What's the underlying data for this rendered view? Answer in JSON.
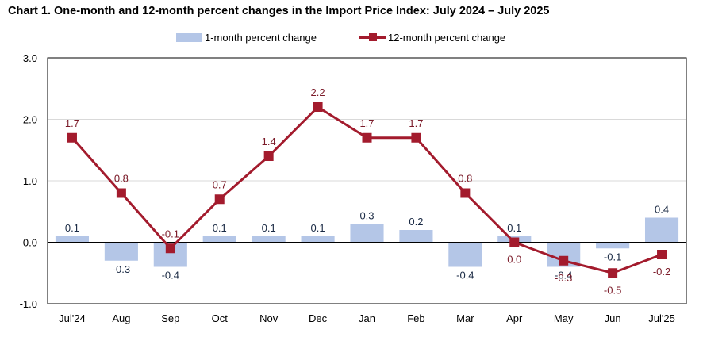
{
  "title": "Chart 1. One-month and 12-month percent changes in the Import Price Index: July 2024 – July 2025",
  "legend": {
    "bar_label": "1-month percent change",
    "line_label": "12-month percent change"
  },
  "colors": {
    "bar": "#b4c6e7",
    "line": "#a31b2d",
    "line_label": "#7b1a28",
    "grid": "#d9d9d9",
    "axis": "#000000"
  },
  "chart_data": {
    "type": "bar",
    "title": "Chart 1. One-month and 12-month percent changes in the Import Price Index: July 2024 – July 2025",
    "xlabel": "",
    "ylabel": "",
    "ylim": [
      -1.0,
      3.0
    ],
    "yticks": [
      "3.0",
      "2.0",
      "1.0",
      "0.0",
      "-1.0"
    ],
    "ytick_values": [
      3.0,
      2.0,
      1.0,
      0.0,
      -1.0
    ],
    "categories": [
      "Jul'24",
      "Aug",
      "Sep",
      "Oct",
      "Nov",
      "Dec",
      "Jan",
      "Feb",
      "Mar",
      "Apr",
      "May",
      "Jun",
      "Jul'25"
    ],
    "series": [
      {
        "name": "1-month percent change",
        "type": "bar",
        "values": [
          0.1,
          -0.3,
          -0.4,
          0.1,
          0.1,
          0.1,
          0.3,
          0.2,
          -0.4,
          0.1,
          -0.4,
          -0.1,
          0.4
        ],
        "labels": [
          "0.1",
          "-0.3",
          "-0.4",
          "0.1",
          "0.1",
          "0.1",
          "0.3",
          "0.2",
          "-0.4",
          "0.1",
          "-0.4",
          "-0.1",
          "0.4"
        ]
      },
      {
        "name": "12-month percent change",
        "type": "line",
        "values": [
          1.7,
          0.8,
          -0.1,
          0.7,
          1.4,
          2.2,
          1.7,
          1.7,
          0.8,
          0.0,
          -0.3,
          -0.5,
          -0.2
        ],
        "labels": [
          "1.7",
          "0.8",
          "-0.1",
          "0.7",
          "1.4",
          "2.2",
          "1.7",
          "1.7",
          "0.8",
          "0.0",
          "-0.3",
          "-0.5",
          "-0.2"
        ]
      }
    ],
    "grid": true,
    "legend_position": "top-center"
  }
}
